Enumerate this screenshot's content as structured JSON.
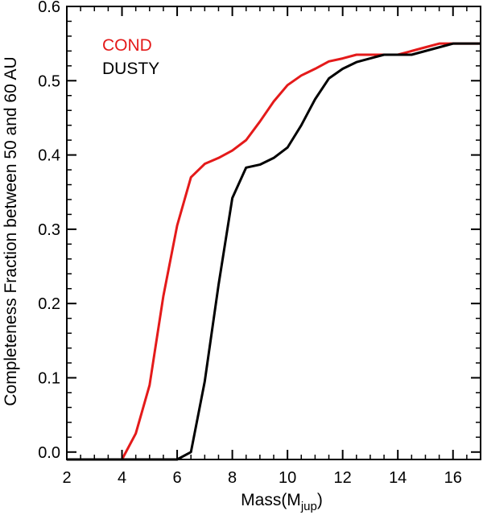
{
  "chart_data": {
    "type": "line",
    "title": "",
    "xlabel_main": "Mass(M",
    "xlabel_sub": "jup",
    "xlabel_close": ")",
    "ylabel": "Completeness Fraction between 50 and 60 AU",
    "xlim": [
      2,
      17
    ],
    "ylim": [
      -0.01,
      0.6
    ],
    "xticks": [
      2,
      4,
      6,
      8,
      10,
      12,
      14,
      16
    ],
    "yticks": [
      0.0,
      0.1,
      0.2,
      0.3,
      0.4,
      0.5,
      0.6
    ],
    "ytick_labels": [
      "0.0",
      "0.1",
      "0.2",
      "0.3",
      "0.4",
      "0.5",
      "0.6"
    ],
    "legend_position": "top-left",
    "series": [
      {
        "name": "COND",
        "color": "#e41a1a",
        "x": [
          2,
          3,
          4,
          4.5,
          5,
          5.5,
          6,
          6.5,
          7,
          7.5,
          8,
          8.5,
          9,
          9.5,
          10,
          10.5,
          11,
          11.5,
          12,
          12.5,
          13,
          13.5,
          14,
          14.5,
          15,
          15.5,
          16,
          16.5,
          17
        ],
        "y": [
          -0.01,
          -0.01,
          -0.01,
          0.025,
          0.09,
          0.21,
          0.305,
          0.37,
          0.388,
          0.396,
          0.406,
          0.42,
          0.445,
          0.472,
          0.494,
          0.507,
          0.516,
          0.526,
          0.53,
          0.535,
          0.535,
          0.535,
          0.535,
          0.54,
          0.545,
          0.55,
          0.55,
          0.55,
          0.55
        ]
      },
      {
        "name": "DUSTY",
        "color": "#000000",
        "x": [
          2,
          4,
          6,
          6.5,
          7,
          7.5,
          8,
          8.5,
          9,
          9.5,
          10,
          10.5,
          11,
          11.5,
          12,
          12.5,
          13,
          13.5,
          14,
          14.5,
          15,
          15.5,
          16,
          16.5,
          17
        ],
        "y": [
          -0.01,
          -0.01,
          -0.01,
          0.0,
          0.095,
          0.225,
          0.342,
          0.383,
          0.387,
          0.396,
          0.41,
          0.44,
          0.475,
          0.503,
          0.516,
          0.525,
          0.53,
          0.535,
          0.535,
          0.535,
          0.54,
          0.545,
          0.55,
          0.55,
          0.55
        ]
      }
    ]
  }
}
